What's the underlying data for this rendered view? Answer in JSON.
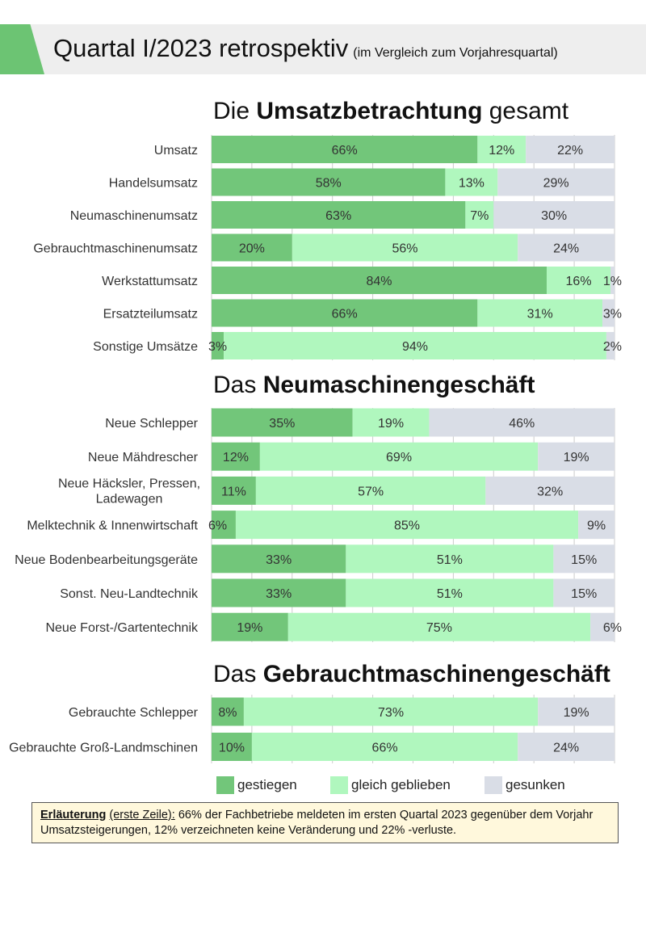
{
  "header": {
    "title": "Quartal I/2023 retrospektiv",
    "subtitle": "(im Vergleich zum Vorjahresquartal)"
  },
  "sections": [
    {
      "title_pre": "Die ",
      "title_bold": "Umsatzbetrachtung",
      "title_post": " gesamt"
    },
    {
      "title_pre": "Das ",
      "title_bold": "Neumaschinengeschäft",
      "title_post": ""
    },
    {
      "title_pre": "Das ",
      "title_bold": "Gebrauchtmaschinengeschäft",
      "title_post": ""
    }
  ],
  "colors": {
    "gestiegen": "#72c67a",
    "gleich": "#b0f7be",
    "gesunken": "#d9dde6",
    "accent": "#6cc473"
  },
  "chart_data": [
    {
      "type": "bar",
      "orientation": "horizontal",
      "stacked": "100%",
      "title": "Die Umsatzbetrachtung gesamt",
      "categories": [
        "Umsatz",
        "Handelsumsatz",
        "Neumaschinenumsatz",
        "Gebrauchtmaschinenumsatz",
        "Werkstattumsatz",
        "Ersatzteilumsatz",
        "Sonstige Umsätze"
      ],
      "series": [
        {
          "name": "gestiegen",
          "values": [
            66,
            58,
            63,
            20,
            84,
            66,
            3
          ]
        },
        {
          "name": "gleich geblieben",
          "values": [
            12,
            13,
            7,
            56,
            16,
            31,
            94
          ]
        },
        {
          "name": "gesunken",
          "values": [
            22,
            29,
            30,
            24,
            1,
            3,
            2
          ]
        }
      ],
      "unit": "%"
    },
    {
      "type": "bar",
      "orientation": "horizontal",
      "stacked": "100%",
      "title": "Das Neumaschinengeschäft",
      "categories": [
        "Neue Schlepper",
        "Neue Mähdrescher",
        "Neue Häcksler, Pressen, Ladewagen",
        "Melktechnik & Innenwirtschaft",
        "Neue Bodenbearbeitungsgeräte",
        "Sonst. Neu-Landtechnik",
        "Neue Forst-/Gartentechnik"
      ],
      "series": [
        {
          "name": "gestiegen",
          "values": [
            35,
            12,
            11,
            6,
            33,
            33,
            19
          ]
        },
        {
          "name": "gleich geblieben",
          "values": [
            19,
            69,
            57,
            85,
            51,
            51,
            75
          ]
        },
        {
          "name": "gesunken",
          "values": [
            46,
            19,
            32,
            9,
            15,
            15,
            6
          ]
        }
      ],
      "unit": "%"
    },
    {
      "type": "bar",
      "orientation": "horizontal",
      "stacked": "100%",
      "title": "Das Gebrauchtmaschinengeschäft",
      "categories": [
        "Gebrauchte Schlepper",
        "Gebrauchte Groß-Landmschinen"
      ],
      "series": [
        {
          "name": "gestiegen",
          "values": [
            8,
            10
          ]
        },
        {
          "name": "gleich geblieben",
          "values": [
            73,
            66
          ]
        },
        {
          "name": "gesunken",
          "values": [
            19,
            24
          ]
        }
      ],
      "unit": "%"
    }
  ],
  "legend": {
    "items": [
      "gestiegen",
      "gleich geblieben",
      "gesunken"
    ]
  },
  "note": {
    "label": "Erläuterung",
    "label2": "(erste Zeile):",
    "text": " 66% der Fachbetriebe meldeten im ersten Quartal 2023 gegenüber dem Vorjahr Umsatzsteigerungen, 12% verzeichneten keine Veränderung und 22% -verluste."
  }
}
